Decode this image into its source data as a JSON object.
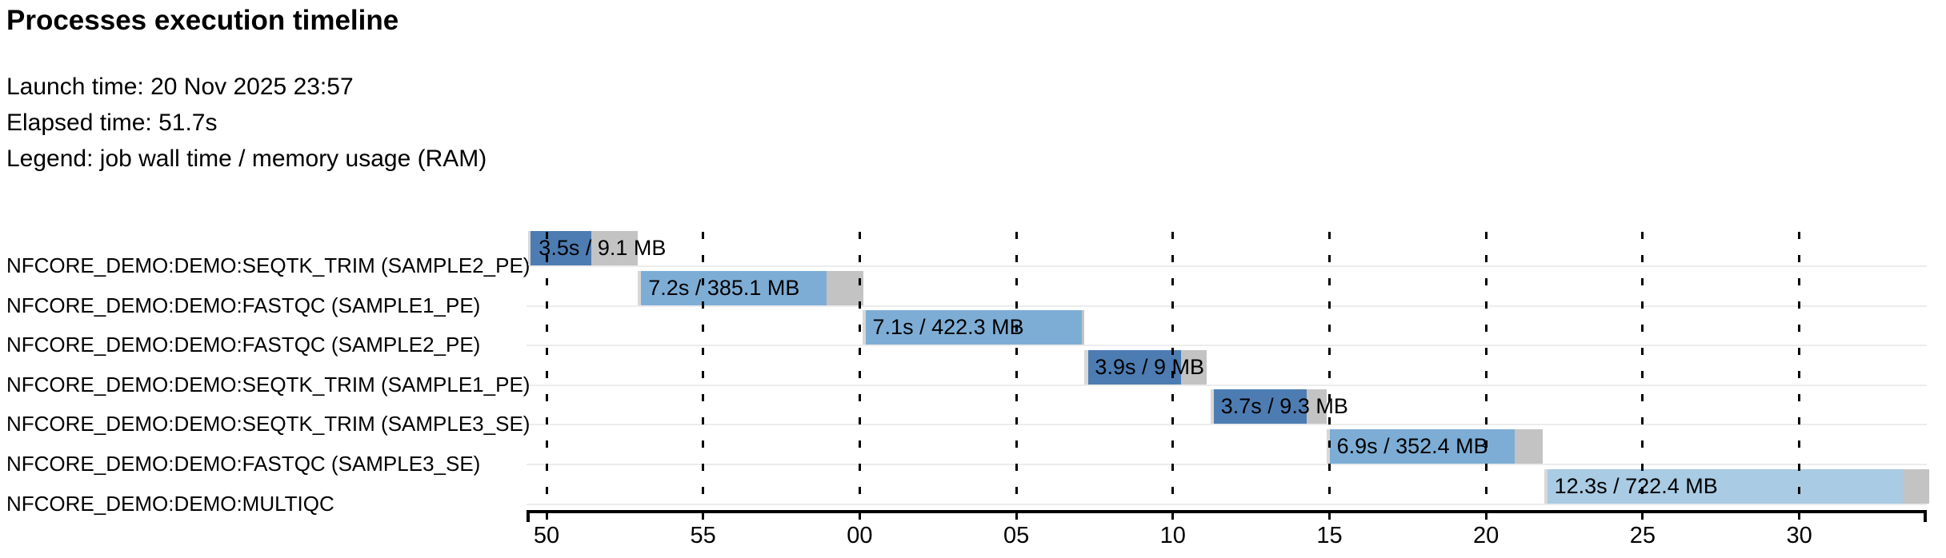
{
  "header": {
    "title": "Processes execution timeline",
    "launch_line": "Launch time: 20 Nov 2025 23:57",
    "elapsed_line": "Elapsed time: 51.7s",
    "legend_line": "Legend: job wall time / memory usage (RAM)"
  },
  "chart_data": {
    "type": "gantt-timeline",
    "title": "Processes execution timeline",
    "legend": "job wall time / memory usage (RAM)",
    "time_axis": {
      "description": "clock seconds, 23:57:50 through 23:58:30",
      "domain_s": [
        49.36,
        94.15
      ],
      "ticks": [
        {
          "t": 50,
          "label": "50"
        },
        {
          "t": 55,
          "label": "55"
        },
        {
          "t": 60,
          "label": "00"
        },
        {
          "t": 65,
          "label": "05"
        },
        {
          "t": 70,
          "label": "10"
        },
        {
          "t": 75,
          "label": "15"
        },
        {
          "t": 80,
          "label": "20"
        },
        {
          "t": 85,
          "label": "25"
        },
        {
          "t": 90,
          "label": "30"
        }
      ]
    },
    "colors": {
      "seqtk_trim": "#4d7cb2",
      "fastqc": "#7dadd5",
      "multiqc": "#a9cbe3",
      "lead": "#d8d8d8",
      "tail": "#c3c3c3",
      "separator": "#ececec"
    },
    "tasks": [
      {
        "process": "NFCORE_DEMO:DEMO:SEQTK_TRIM (SAMPLE2_PE)",
        "label": "3.5s / 9.1 MB",
        "wall_time_s": 3.5,
        "memory": "9.1 MB",
        "color_key": "seqtk_trim",
        "start": 49.42,
        "lead_end": 49.5,
        "run_end": 51.42,
        "end": 52.92
      },
      {
        "process": "NFCORE_DEMO:DEMO:FASTQC (SAMPLE1_PE)",
        "label": "7.2s / 385.1 MB",
        "wall_time_s": 7.2,
        "memory": "385.1 MB",
        "color_key": "fastqc",
        "start": 52.92,
        "lead_end": 53.02,
        "run_end": 58.95,
        "end": 60.12
      },
      {
        "process": "NFCORE_DEMO:DEMO:FASTQC (SAMPLE2_PE)",
        "label": "7.1s / 422.3 MB",
        "wall_time_s": 7.1,
        "memory": "422.3 MB",
        "color_key": "fastqc",
        "start": 60.08,
        "lead_end": 60.2,
        "run_end": 67.1,
        "end": 67.18
      },
      {
        "process": "NFCORE_DEMO:DEMO:SEQTK_TRIM (SAMPLE1_PE)",
        "label": "3.9s / 9 MB",
        "wall_time_s": 3.9,
        "memory": "9 MB",
        "color_key": "seqtk_trim",
        "start": 67.18,
        "lead_end": 67.3,
        "run_end": 70.25,
        "end": 71.08
      },
      {
        "process": "NFCORE_DEMO:DEMO:SEQTK_TRIM (SAMPLE3_SE)",
        "label": "3.7s / 9.3 MB",
        "wall_time_s": 3.7,
        "memory": "9.3 MB",
        "color_key": "seqtk_trim",
        "start": 71.2,
        "lead_end": 71.32,
        "run_end": 74.27,
        "end": 74.9
      },
      {
        "process": "NFCORE_DEMO:DEMO:FASTQC (SAMPLE3_SE)",
        "label": "6.9s / 352.4 MB",
        "wall_time_s": 6.9,
        "memory": "352.4 MB",
        "color_key": "fastqc",
        "start": 74.9,
        "lead_end": 75.02,
        "run_end": 80.92,
        "end": 81.8
      },
      {
        "process": "NFCORE_DEMO:DEMO:MULTIQC",
        "label": "12.3s / 722.4 MB",
        "wall_time_s": 12.3,
        "memory": "722.4 MB",
        "color_key": "multiqc",
        "start": 81.85,
        "lead_end": 81.95,
        "run_end": 93.3,
        "end": 94.15
      }
    ]
  }
}
